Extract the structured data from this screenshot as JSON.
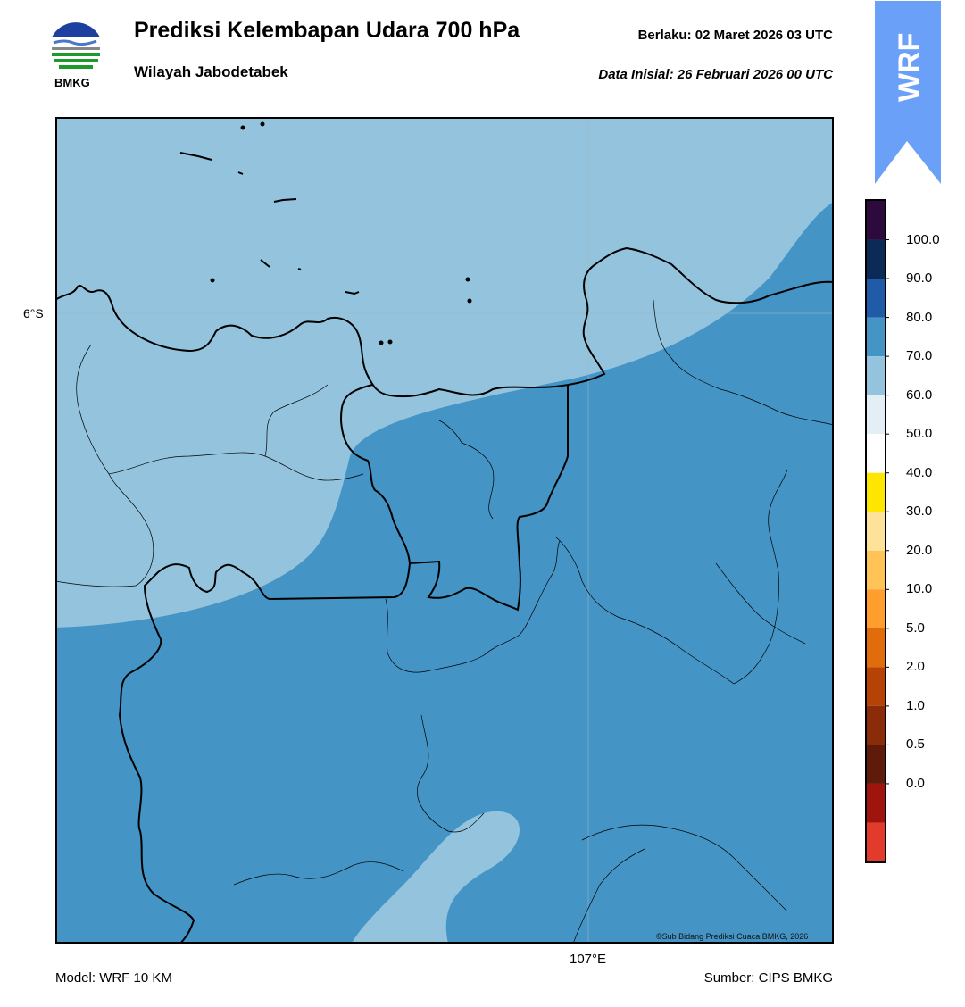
{
  "header": {
    "title": "Prediksi Kelembapan Udara 700 hPa",
    "subtitle": "Wilayah Jabodetabek",
    "valid_label": "Berlaku:  02 Maret 2026 03 UTC",
    "init_label": "Data Inisial:  26 Februari 2026 00 UTC"
  },
  "logo": {
    "text": "BMKG",
    "icon": "bmkg-logo"
  },
  "badge": {
    "text": "WRF",
    "color": "#6aa0f8"
  },
  "map": {
    "lat_label": "6°S",
    "lon_label": "107°E",
    "credit": "©Sub Bidang Prediksi Cuaca BMKG, 2026",
    "fill_colors": {
      "60_70": "#94c4dd",
      "70_80": "#4494c5"
    }
  },
  "colorbar": {
    "labels": [
      "100.0",
      "90.0",
      "80.0",
      "70.0",
      "60.0",
      "50.0",
      "40.0",
      "30.0",
      "20.0",
      "10.0",
      "5.0",
      "2.0",
      "1.0",
      "0.5",
      "0.0"
    ],
    "colors": [
      "#2c0a3c",
      "#0b2a55",
      "#1f5ba6",
      "#4494c5",
      "#94c4dd",
      "#e4eef5",
      "#ffffff",
      "#ffe600",
      "#ffe29a",
      "#ffc455",
      "#ff9e2c",
      "#e06c0b",
      "#b64205",
      "#8a2b0a",
      "#5e1b0a",
      "#a0140e",
      "#e23b2c"
    ]
  },
  "footer": {
    "model": "Model: WRF 10 KM",
    "source": "Sumber: CIPS BMKG"
  }
}
